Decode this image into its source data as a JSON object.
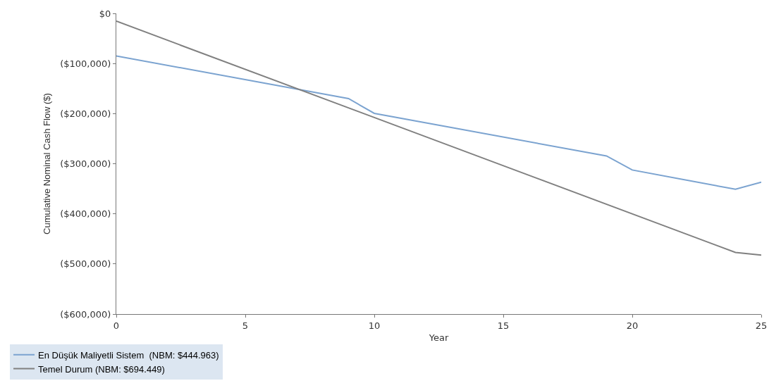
{
  "chart_data": {
    "type": "line",
    "xlabel": "Year",
    "ylabel": "Cumulative Nominal Cash Flow ($)",
    "series": [
      {
        "name": "En Düşük Maliyetli Sistem  (NBM: $444.963)",
        "color": "#7ba3d0",
        "x": [
          0,
          9,
          10,
          19,
          20,
          24,
          25
        ],
        "values": [
          -85000,
          -170000,
          -199500,
          -284500,
          -312500,
          -351000,
          -337000
        ]
      },
      {
        "name": "Temel Durum (NBM: $694.449)",
        "color": "#808080",
        "x": [
          0,
          24,
          25
        ],
        "values": [
          -15500,
          -477000,
          -482500
        ]
      }
    ],
    "xlim": [
      0,
      25
    ],
    "xticks": [
      0,
      5,
      10,
      15,
      20,
      25
    ],
    "ylim": [
      -600000,
      0
    ],
    "yticks": [
      {
        "value": -600000,
        "label": "($600,000)"
      },
      {
        "value": -500000,
        "label": "($500,000)"
      },
      {
        "value": -400000,
        "label": "($400,000)"
      },
      {
        "value": -300000,
        "label": "($300,000)"
      },
      {
        "value": -200000,
        "label": "($200,000)"
      },
      {
        "value": -100000,
        "label": "($100,000)"
      },
      {
        "value": 0,
        "label": "$0"
      }
    ],
    "grid": false,
    "legend": "bottom left",
    "marker": "none",
    "line_style": "solid"
  }
}
